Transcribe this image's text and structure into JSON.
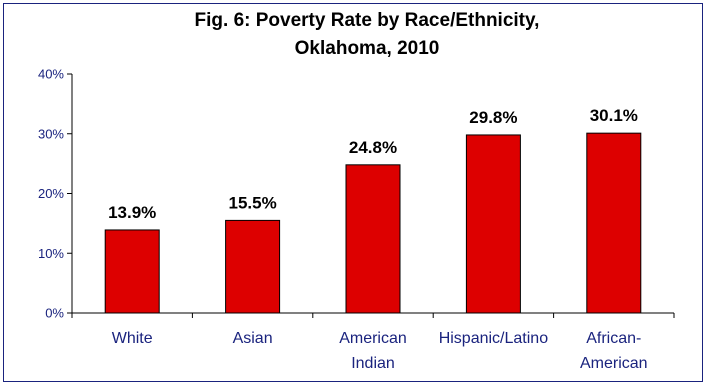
{
  "chart_data": {
    "type": "bar",
    "title_lines": [
      "Fig. 6: Poverty Rate by Race/Ethnicity,",
      "Oklahoma, 2010"
    ],
    "categories": [
      [
        "White"
      ],
      [
        "Asian"
      ],
      [
        "American",
        "Indian"
      ],
      [
        "Hispanic/Latino"
      ],
      [
        "African-",
        "American"
      ]
    ],
    "values": [
      13.9,
      15.5,
      24.8,
      29.8,
      30.1
    ],
    "data_labels": [
      "13.9%",
      "15.5%",
      "24.8%",
      "29.8%",
      "30.1%"
    ],
    "y_ticks": [
      "0%",
      "10%",
      "20%",
      "30%",
      "40%"
    ],
    "ylim": [
      0,
      40
    ],
    "grid": false,
    "legend": "none",
    "xlabel": "",
    "ylabel": "",
    "bar_color": "#dd0000",
    "axis_color": "#1a237e"
  }
}
